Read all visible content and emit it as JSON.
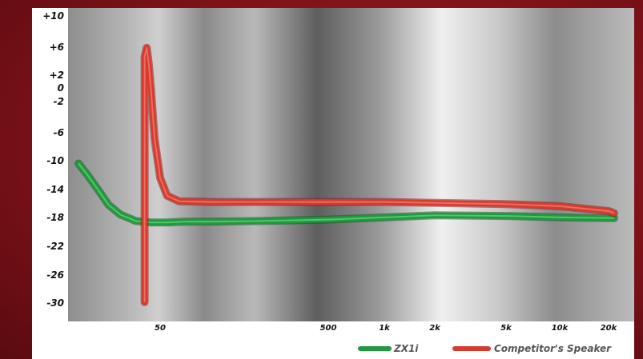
{
  "chart_data": {
    "type": "line",
    "title": "",
    "xlabel": "",
    "ylabel": "",
    "x_scale": "log",
    "xlim": [
      20,
      22000
    ],
    "ylim": [
      -30,
      10
    ],
    "y_ticks": [
      "+10",
      "+6",
      "+2",
      "0",
      "-2",
      "-6",
      "-10",
      "-14",
      "-18",
      "-22",
      "-26",
      "-30"
    ],
    "x_ticks": [
      {
        "label": "50",
        "value": 50
      },
      {
        "label": "500",
        "value": 500
      },
      {
        "label": "1k",
        "value": 1000
      },
      {
        "label": "2k",
        "value": 2000
      },
      {
        "label": "5k",
        "value": 5000
      },
      {
        "label": "10k",
        "value": 10000
      },
      {
        "label": "20k",
        "value": 20000
      }
    ],
    "series": [
      {
        "name": "ZX1i",
        "color": "#1f9a3c",
        "x": [
          20,
          22,
          25,
          28,
          32,
          38,
          45,
          55,
          70,
          100,
          200,
          500,
          1000,
          2000,
          5000,
          10000,
          22000
        ],
        "y": [
          -10.5,
          -12,
          -14.2,
          -16.3,
          -17.7,
          -18.6,
          -18.8,
          -18.8,
          -18.7,
          -18.7,
          -18.6,
          -18.4,
          -18.1,
          -17.8,
          -17.9,
          -18.1,
          -18.2
        ]
      },
      {
        "name": "Competitor's Speaker",
        "color": "#d83a2e",
        "x": [
          42,
          42,
          43,
          44,
          45,
          47,
          50,
          55,
          65,
          100,
          500,
          1000,
          5000,
          10000,
          20000,
          22000
        ],
        "y": [
          -30,
          4.5,
          5.8,
          3.5,
          0,
          -7,
          -12.5,
          -15,
          -15.8,
          -15.9,
          -15.9,
          -15.9,
          -16.2,
          -16.5,
          -17.2,
          -17.5
        ]
      }
    ],
    "legend_position": "bottom-right",
    "grid": false
  }
}
